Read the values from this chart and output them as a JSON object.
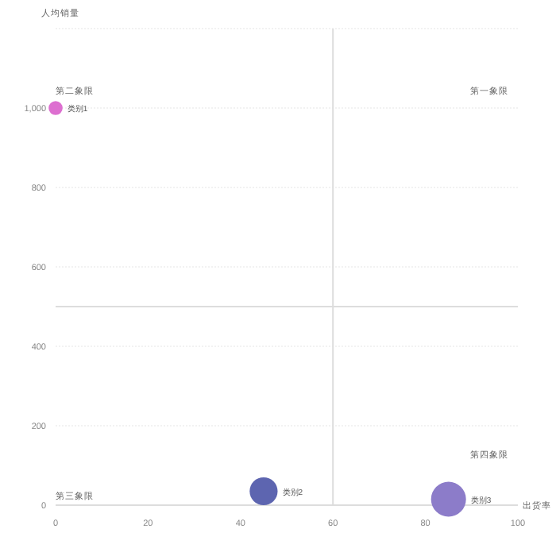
{
  "chart_data": {
    "type": "bubble",
    "xlabel": "出货率",
    "ylabel": "人均销量",
    "xlim": [
      0,
      100
    ],
    "xticks": [
      0,
      20,
      40,
      60,
      80,
      100
    ],
    "ylim": [
      0,
      1200
    ],
    "yticks": [
      0,
      200,
      400,
      600,
      800,
      "1,000",
      {
        "value": 1200,
        "label": null
      }
    ],
    "grid": "y",
    "series": [
      {
        "name": "类别1",
        "color": "#dd6fd0",
        "x": [
          0
        ],
        "values": [
          1000
        ],
        "sizes": [
          0.16
        ]
      },
      {
        "name": "类别2",
        "color": "#5d65b0",
        "x": [
          45
        ],
        "values": [
          35
        ],
        "sizes": [
          0.64
        ]
      },
      {
        "name": "类别3",
        "color": "#8c7cc9",
        "x": [
          85
        ],
        "values": [
          15
        ],
        "sizes": [
          1
        ]
      }
    ],
    "ref_lines": [
      {
        "axis": "x",
        "value": 60,
        "color": "#dddddd"
      },
      {
        "axis": "y",
        "value": 500,
        "color": "#dddddd"
      }
    ],
    "annotations": [
      "第一象限",
      "第二象限",
      "第三象限",
      "第四象限"
    ]
  }
}
